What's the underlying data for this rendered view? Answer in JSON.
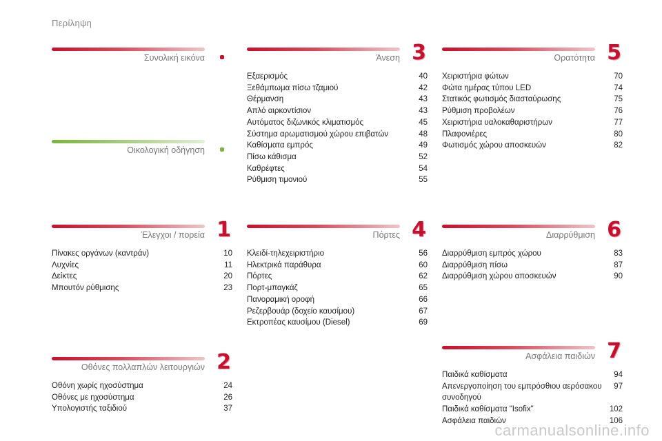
{
  "page_title": "Περίληψη",
  "watermark": "carmanualsonline.info",
  "sections": {
    "overview": {
      "title": "Συνολική εικόνα",
      "entries": []
    },
    "eco": {
      "title": "Οικολογική οδήγηση",
      "entries": []
    },
    "controls": {
      "title": "Έλεγχοι / πορεία",
      "number": "1",
      "entries": [
        {
          "label": "Πίνακες οργάνων (καντράν)",
          "page": "10"
        },
        {
          "label": "Λυχνίες",
          "page": "11"
        },
        {
          "label": "Δείκτες",
          "page": "20"
        },
        {
          "label": "Μπουτόν ρύθμισης",
          "page": "23"
        }
      ]
    },
    "screens": {
      "title": "Οθόνες πολλαπλών λειτουργιών",
      "number": "2",
      "entries": [
        {
          "label": "Οθόνη χωρίς ηχοσύστημα",
          "page": "24"
        },
        {
          "label": "Οθόνες με ηχοσύστημα",
          "page": "26"
        },
        {
          "label": "Υπολογιστής ταξιδιού",
          "page": "37"
        }
      ]
    },
    "comfort": {
      "title": "Άνεση",
      "number": "3",
      "entries": [
        {
          "label": "Εξαερισμός",
          "page": "40"
        },
        {
          "label": "Ξεθάμπωμα πίσω τζαμιού",
          "page": "42"
        },
        {
          "label": "Θέρμανση",
          "page": "43"
        },
        {
          "label": "Απλό αιρκοντίσιον",
          "page": "43"
        },
        {
          "label": "Αυτόματος διζωνικός κλιματισμός",
          "page": "45"
        },
        {
          "label": "Σύστημα αρωματισμού χώρου επιβατών",
          "page": "48"
        },
        {
          "label": "Καθίσματα εμπρός",
          "page": "49"
        },
        {
          "label": "Πίσω κάθισμα",
          "page": "52"
        },
        {
          "label": "Καθρέφτες",
          "page": "54"
        },
        {
          "label": "Ρύθμιση τιμονιού",
          "page": "55"
        }
      ]
    },
    "doors": {
      "title": "Πόρτες",
      "number": "4",
      "entries": [
        {
          "label": "Κλειδί-τηλεχειριστήριο",
          "page": "56"
        },
        {
          "label": "Ηλεκτρικά παράθυρα",
          "page": "60"
        },
        {
          "label": "Πόρτες",
          "page": "62"
        },
        {
          "label": "Πορτ-μπαγκάζ",
          "page": "65"
        },
        {
          "label": "Πανοραμική οροφή",
          "page": "66"
        },
        {
          "label": "Ρεζερβουάρ (δοχείο καυσίμου)",
          "page": "67"
        },
        {
          "label": "Εκτροπέας καυσίμου (Diesel)",
          "page": "69"
        }
      ]
    },
    "visibility": {
      "title": "Ορατότητα",
      "number": "5",
      "entries": [
        {
          "label": "Χειριστήρια φώτων",
          "page": "70"
        },
        {
          "label": "Φώτα ημέρας τύπου LED",
          "page": "74"
        },
        {
          "label": "Στατικός φωτισμός διασταύρωσης",
          "page": "75"
        },
        {
          "label": "Ρύθμιση προβολέων",
          "page": "76"
        },
        {
          "label": "Χειριστήρια υαλοκαθαριστήρων",
          "page": "77"
        },
        {
          "label": "Πλαφονιέρες",
          "page": "80"
        },
        {
          "label": "Φωτισμός χώρου αποσκευών",
          "page": "82"
        }
      ]
    },
    "layout": {
      "title": "Διαρρύθμιση",
      "number": "6",
      "entries": [
        {
          "label": "Διαρρύθμιση εμπρός χώρου",
          "page": "83"
        },
        {
          "label": "Διαρρύθμιση πίσω",
          "page": "87"
        },
        {
          "label": "Διαρρύθμιση χώρου αποσκευών",
          "page": "90"
        }
      ]
    },
    "child_safety": {
      "title": "Ασφάλεια παιδιών",
      "number": "7",
      "entries": [
        {
          "label": "Παιδικά καθίσματα",
          "page": "94"
        },
        {
          "label": "Απενεργοποίηση του εμπρόσθιου αερόσακου συνοδηγού",
          "page": "97"
        },
        {
          "label": "Παιδικά καθίσματα \"Isofix\"",
          "page": "102"
        },
        {
          "label": "Ασφάλεια παιδιών",
          "page": "106"
        }
      ]
    }
  },
  "colors": {
    "accent": "#c8102e",
    "eco": "#7ab43c",
    "muted": "#777777"
  }
}
